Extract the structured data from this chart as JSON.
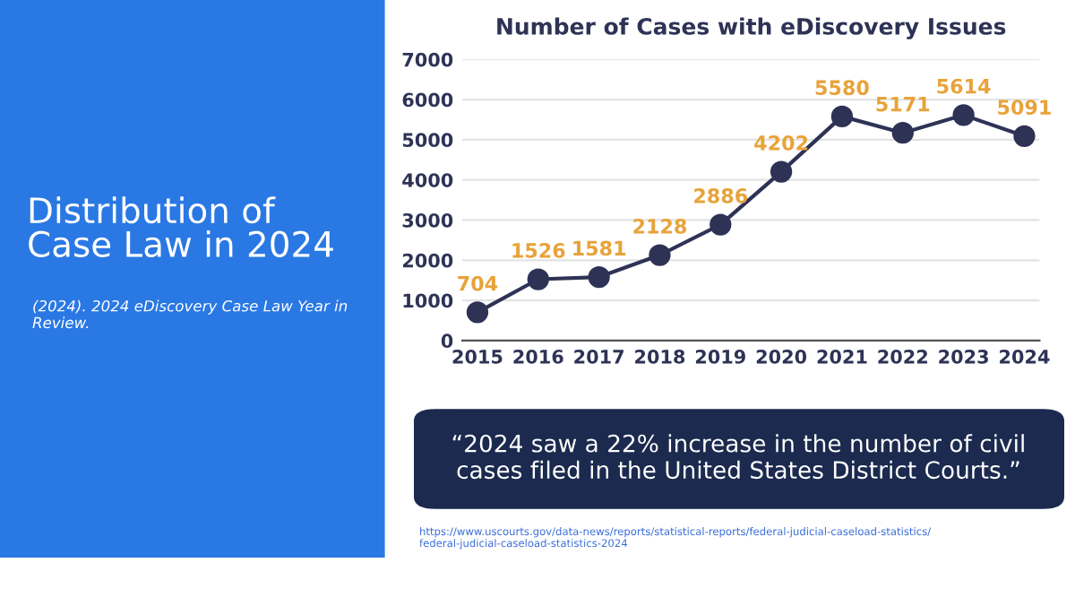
{
  "chart_data": {
    "type": "line",
    "title": "Number of Cases with eDiscovery Issues",
    "categories": [
      "2015",
      "2016",
      "2017",
      "2018",
      "2019",
      "2020",
      "2021",
      "2022",
      "2023",
      "2024"
    ],
    "series": [
      {
        "color": "#2e3356",
        "values": [
          704,
          1526,
          1581,
          2128,
          2886,
          4202,
          5580,
          5171,
          5614,
          5091
        ]
      }
    ],
    "ylim": [
      0,
      7000
    ],
    "yticks": [
      0,
      1000,
      2000,
      3000,
      4000,
      5000,
      6000,
      7000
    ],
    "grid": "y",
    "marker": "circle",
    "line_style": "solid",
    "data_labels": true,
    "legend": false,
    "annotations": [
      "Distribution of Case Law in 2024",
      "(2024). 2024 eDiscovery Case Law Year in Review.",
      "“2024 saw a 22% increase in the number of civil cases filed in the United States District Courts.”",
      "https://www.uscourts.gov/data-news/reports/statistical-reports/federal-judicial-caseload-statistics/federal-judicial-caseload-statistics-2024"
    ]
  }
}
